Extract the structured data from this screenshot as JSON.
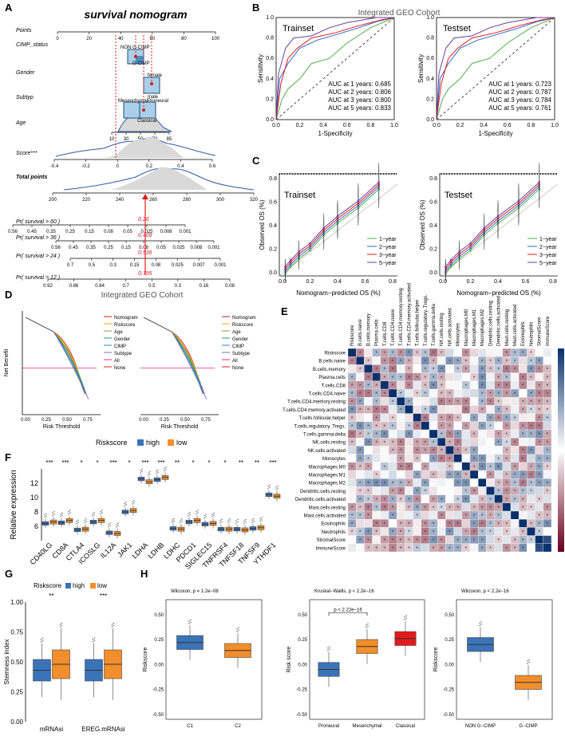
{
  "panels": {
    "A": "A",
    "B": "B",
    "C": "C",
    "D": "D",
    "E": "E",
    "F": "F",
    "G": "G",
    "H": "H"
  },
  "colors": {
    "high": "#3b73b9",
    "low": "#f28e2b",
    "red": "#e31a1c",
    "green": "#4daf4a",
    "purple": "#6a3d9a",
    "blue": "#3366cc"
  },
  "nomogram": {
    "title": "survival nomogram",
    "rows": [
      "Points",
      "CIMP_status",
      "Gender",
      "Subtyp",
      "Age",
      "Score***",
      "Total points",
      "Pr( survival > 60 )",
      "Pr( survival > 36 )",
      "Pr( survival > 24 )",
      "Pr( survival > 12 )"
    ],
    "points_ticks": [
      "0",
      "20",
      "40",
      "60",
      "80",
      "100"
    ],
    "cimp_labels": [
      "NON G-CIMP",
      "G-CIMP"
    ],
    "gender_labels": [
      "female",
      "male"
    ],
    "subtype_labels": [
      "Mesenchymal",
      "Proneural",
      "Classical"
    ],
    "age_ticks": [
      "10",
      "30",
      "50",
      "70",
      "85"
    ],
    "score_ticks": [
      "-0.4",
      "-0.2",
      "0",
      "0.2",
      "0.4",
      "0.6"
    ],
    "total_ticks": [
      "200",
      "220",
      "240",
      "260",
      "280",
      "300",
      "320"
    ],
    "prob60": [
      "0.56",
      "0.45",
      "0.35",
      "0.25",
      "0.15",
      "0.08",
      "0.05",
      "0.025",
      "0.008",
      "0.001"
    ],
    "prob36": [
      "0.56",
      "0.45",
      "0.35",
      "0.25",
      "0.15",
      "0.08",
      "0.05",
      "0.025",
      "0.008",
      "0.001"
    ],
    "prob24": [
      "0.7",
      "0.5",
      "0.3",
      "0.15",
      "0.08",
      "0.025",
      "0.007",
      "0.001"
    ],
    "prob12": [
      "0.92",
      "0.86",
      "0.84",
      "0.7",
      "0.5",
      "0.3",
      "0.16",
      "0.08"
    ],
    "red_values": [
      "0.26",
      "0.409",
      "0.536",
      "0.795"
    ]
  },
  "roc": {
    "cohort_title": "Integrated GEO Cohort",
    "xlabel": "1-Specificity",
    "ylabel": "Sensitivity",
    "ticks": [
      "0.0",
      "0.2",
      "0.4",
      "0.6",
      "0.8",
      "1.0"
    ],
    "train": {
      "title": "Trainset",
      "auc": [
        "AUC at 1 years: 0.685",
        "AUC at 2 years: 0.806",
        "AUC at 3 years: 0.800",
        "AUC at 5 years: 0.833"
      ]
    },
    "test": {
      "title": "Testset",
      "auc": [
        "AUC at 1 years: 0.723",
        "AUC at 2 years: 0.787",
        "AUC at 3 years: 0.784",
        "AUC at 5 years: 0.761"
      ]
    }
  },
  "calibration": {
    "xlabel": "Nomogram−predicted OS (%)",
    "ylabel": "Observed OS (%)",
    "ticks": [
      "0.0",
      "0.2",
      "0.4",
      "0.6",
      "0.8"
    ],
    "train_title": "Trainset",
    "test_title": "Testset",
    "legend": [
      "1−year",
      "2−year",
      "3−year",
      "5−year"
    ]
  },
  "dca": {
    "title": "Integrated GEO Cohort",
    "ylabel": "Net Benefit",
    "xlabel": "Risk Threshold",
    "xticks": [
      "0.00",
      "0.25",
      "0.50",
      "0.75"
    ],
    "legend": [
      "Nomogram",
      "Riskscore",
      "Age",
      "Gender",
      "CIMP",
      "Subtype",
      "All",
      "None"
    ]
  },
  "corr": {
    "labels": [
      "Riskscore",
      "B.cells.naive",
      "B.cells.memory",
      "Plasma.cells",
      "T.cells.CD8",
      "T.cells.CD4.naive",
      "T.cells.CD4.memory.resting",
      "T.cells.CD4.memory.activated",
      "T.cells.follicular.helper",
      "T.cells.regulatory..Tregs.",
      "T.cells.gamma.delta",
      "NK.cells.resting",
      "NK.cells.activated",
      "Monocytes",
      "Macrophages.M0",
      "Macrophages.M1",
      "Macrophages.M2",
      "Dendritic.cells.resting",
      "Dendritic.cells.activated",
      "Mast.cells.resting",
      "Mast.cells.activated",
      "Eosinophils",
      "Neutrophils",
      "StromalScore",
      "ImmuneScore"
    ],
    "scale": [
      "1",
      "0.8",
      "0.6",
      "0.4",
      "0.2",
      "0",
      "-0.2",
      "-0.4",
      "-0.6",
      "-0.8",
      "-1"
    ]
  },
  "chart_data": [
    {
      "type": "box",
      "id": "F",
      "title": "Riskscore",
      "legend": [
        "high",
        "low"
      ],
      "ylabel": "Relative expression",
      "ylim": [
        4,
        14
      ],
      "yticks": [
        "6",
        "8",
        "10",
        "12"
      ],
      "categories": [
        "CD40LG",
        "CD8A",
        "CTLA4",
        "ICOSLG",
        "IL12A",
        "JAK1",
        "LDHA",
        "LDHB",
        "LDHC",
        "PDCD1",
        "SIGLEC15",
        "TNFRSF4",
        "TNFSF18",
        "TNFSF9",
        "YTHDF1"
      ],
      "significance": [
        "***",
        "***",
        "*",
        "*",
        "***",
        "*",
        "***",
        "***",
        "**",
        "*",
        "*",
        "*",
        "**",
        "**",
        "***"
      ],
      "series": [
        {
          "name": "high",
          "medians": [
            6.4,
            6.5,
            5.5,
            6.6,
            5.1,
            8.0,
            12.6,
            12.5,
            5.7,
            6.6,
            6.3,
            5.6,
            5.6,
            5.7,
            10.4
          ]
        },
        {
          "name": "low",
          "medians": [
            6.6,
            6.8,
            5.6,
            6.8,
            5.0,
            8.2,
            12.2,
            12.8,
            5.6,
            6.8,
            6.4,
            5.6,
            5.5,
            5.8,
            10.2
          ]
        }
      ]
    },
    {
      "type": "box",
      "id": "G",
      "title": "Riskscore",
      "legend": [
        "high",
        "low"
      ],
      "ylabel": "Stemness index",
      "ylim": [
        0,
        1
      ],
      "yticks": [
        "0.00",
        "0.25",
        "0.50",
        "0.75",
        "1.00"
      ],
      "categories": [
        "mRNAsi",
        "EREG.mRNAsi"
      ],
      "significance": [
        "**",
        "***"
      ],
      "series": [
        {
          "name": "high",
          "medians": [
            0.43,
            0.43
          ]
        },
        {
          "name": "low",
          "medians": [
            0.48,
            0.48
          ]
        }
      ]
    },
    {
      "type": "box",
      "id": "H1",
      "title": "Wilcoxon, p = 1.2e−08",
      "ylabel": "Riskscore",
      "categories": [
        "C1",
        "C2"
      ],
      "medians": [
        0.22,
        0.14
      ],
      "ylim": [
        -0.55,
        0.65
      ],
      "yticks": [
        "-0.50",
        "-0.25",
        "0.00",
        "0.25",
        "0.50"
      ]
    },
    {
      "type": "box",
      "id": "H2",
      "title": "Kruskal−Wallis, p < 2.2e−16",
      "bracket": "p < 2.22e−16",
      "ylabel": "Risk score",
      "categories": [
        "Proneural",
        "Mesenchymal",
        "Classical"
      ],
      "medians": [
        -0.05,
        0.18,
        0.26
      ],
      "ylim": [
        -0.55,
        0.65
      ],
      "yticks": [
        "-0.50",
        "-0.25",
        "0.00",
        "0.25",
        "0.50"
      ]
    },
    {
      "type": "box",
      "id": "H3",
      "title": "Wilcoxon, p < 2.2e−16",
      "ylabel": "Riskscore",
      "categories": [
        "NON G−CIMP",
        "G−CIMP"
      ],
      "medians": [
        0.2,
        -0.18
      ],
      "ylim": [
        -0.55,
        0.65
      ],
      "yticks": [
        "-0.50",
        "-0.25",
        "0.00",
        "0.25",
        "0.50"
      ]
    }
  ]
}
